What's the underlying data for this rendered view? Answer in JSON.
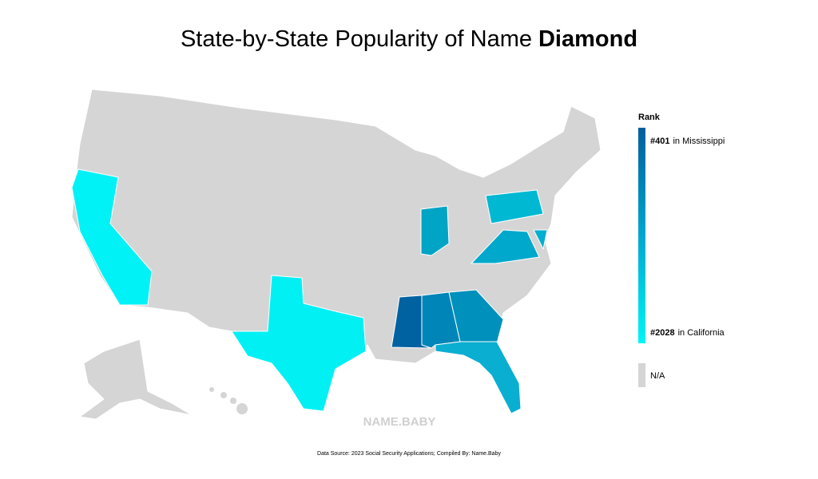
{
  "title": {
    "text": "State-by-State Popularity of Name",
    "name": "Diamond"
  },
  "legend": {
    "heading": "Rank",
    "top": {
      "rank": "#401",
      "text": "in Mississippi"
    },
    "bottom": {
      "rank": "#2028",
      "text": "in California"
    },
    "na": "N/A"
  },
  "watermark": "NAME.BABY",
  "source": "Data Source: 2023 Social Security Applications; Compiled By: Name.Baby"
}
